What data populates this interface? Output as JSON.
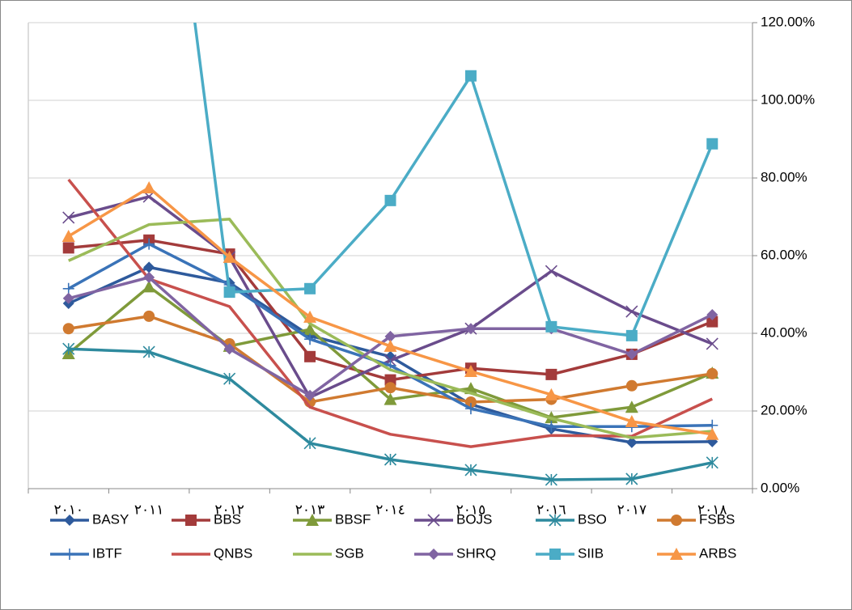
{
  "chart_data": {
    "type": "line",
    "categories": [
      "٢٠١٠",
      "٢٠١١",
      "٢٠١٢",
      "٢٠١٣",
      "٢٠١٤",
      "٢٠١٥",
      "٢٠١٦",
      "٢٠١٧",
      "٢٠١٨"
    ],
    "ylim": [
      0,
      120
    ],
    "yticks": [
      {
        "value": 0,
        "label": "0.00%"
      },
      {
        "value": 20,
        "label": "20.00%"
      },
      {
        "value": 40,
        "label": "40.00%"
      },
      {
        "value": 60,
        "label": "60.00%"
      },
      {
        "value": 80,
        "label": "80.00%"
      },
      {
        "value": 100,
        "label": "100.00%"
      },
      {
        "value": 120,
        "label": "120.00%"
      }
    ],
    "grid": true,
    "y_axis_side": "right",
    "legend": "bottom",
    "series": [
      {
        "name": "BASY",
        "color": "#2E5A9C",
        "marker": "diamond",
        "values": [
          47.7,
          57,
          53,
          39.4,
          34,
          21.7,
          15.4,
          11.9,
          12.1
        ]
      },
      {
        "name": "BBS",
        "color": "#A33B3B",
        "marker": "square",
        "values": [
          62,
          64,
          60.4,
          34,
          28,
          31,
          29.4,
          34.6,
          43
        ]
      },
      {
        "name": "BBSF",
        "color": "#7F9A3A",
        "marker": "triangle",
        "values": [
          34.8,
          52,
          36.7,
          41,
          23,
          25.8,
          18.3,
          21,
          29.8
        ]
      },
      {
        "name": "BOJS",
        "color": "#6A4C8C",
        "marker": "x",
        "values": [
          69.8,
          75.2,
          59.6,
          23.5,
          33,
          41.2,
          56,
          45.6,
          37.3
        ]
      },
      {
        "name": "BSO",
        "color": "#2E8A9E",
        "marker": "asterisk",
        "values": [
          36,
          35.2,
          28.3,
          11.7,
          7.5,
          4.8,
          2.3,
          2.5,
          6.7
        ]
      },
      {
        "name": "FSBS",
        "color": "#D07A30",
        "marker": "circle",
        "values": [
          41.2,
          44.4,
          37.3,
          22.3,
          26,
          22.3,
          23,
          26.5,
          29.6
        ]
      },
      {
        "name": "IBTF",
        "color": "#3A73B8",
        "marker": "plus",
        "values": [
          51.5,
          63,
          52.5,
          38.5,
          31.7,
          20.6,
          16,
          16,
          16.3
        ]
      },
      {
        "name": "QNBS",
        "color": "#C8504D",
        "marker": "none",
        "values": [
          79.6,
          54,
          46.9,
          21,
          14,
          10.8,
          13.7,
          13.5,
          23.1
        ]
      },
      {
        "name": "SGB",
        "color": "#9BBB59",
        "marker": "none",
        "values": [
          58.7,
          68,
          69.4,
          42.5,
          30.6,
          24.6,
          18.1,
          13.1,
          14.8
        ]
      },
      {
        "name": "SHRQ",
        "color": "#8064A2",
        "marker": "diamond",
        "values": [
          49,
          54.4,
          36,
          24,
          39.2,
          41.2,
          41.2,
          34.6,
          44.8
        ]
      },
      {
        "name": "SIIB",
        "color": "#4BACC6",
        "marker": "square",
        "values": [
          null,
          212,
          50.6,
          51.5,
          74.2,
          106.3,
          41.7,
          39.4,
          88.8
        ]
      },
      {
        "name": "ARBS",
        "color": "#F79646",
        "marker": "triangle",
        "values": [
          65,
          77.5,
          59.6,
          44.2,
          36.7,
          30.2,
          24.2,
          17.3,
          14
        ]
      }
    ]
  }
}
